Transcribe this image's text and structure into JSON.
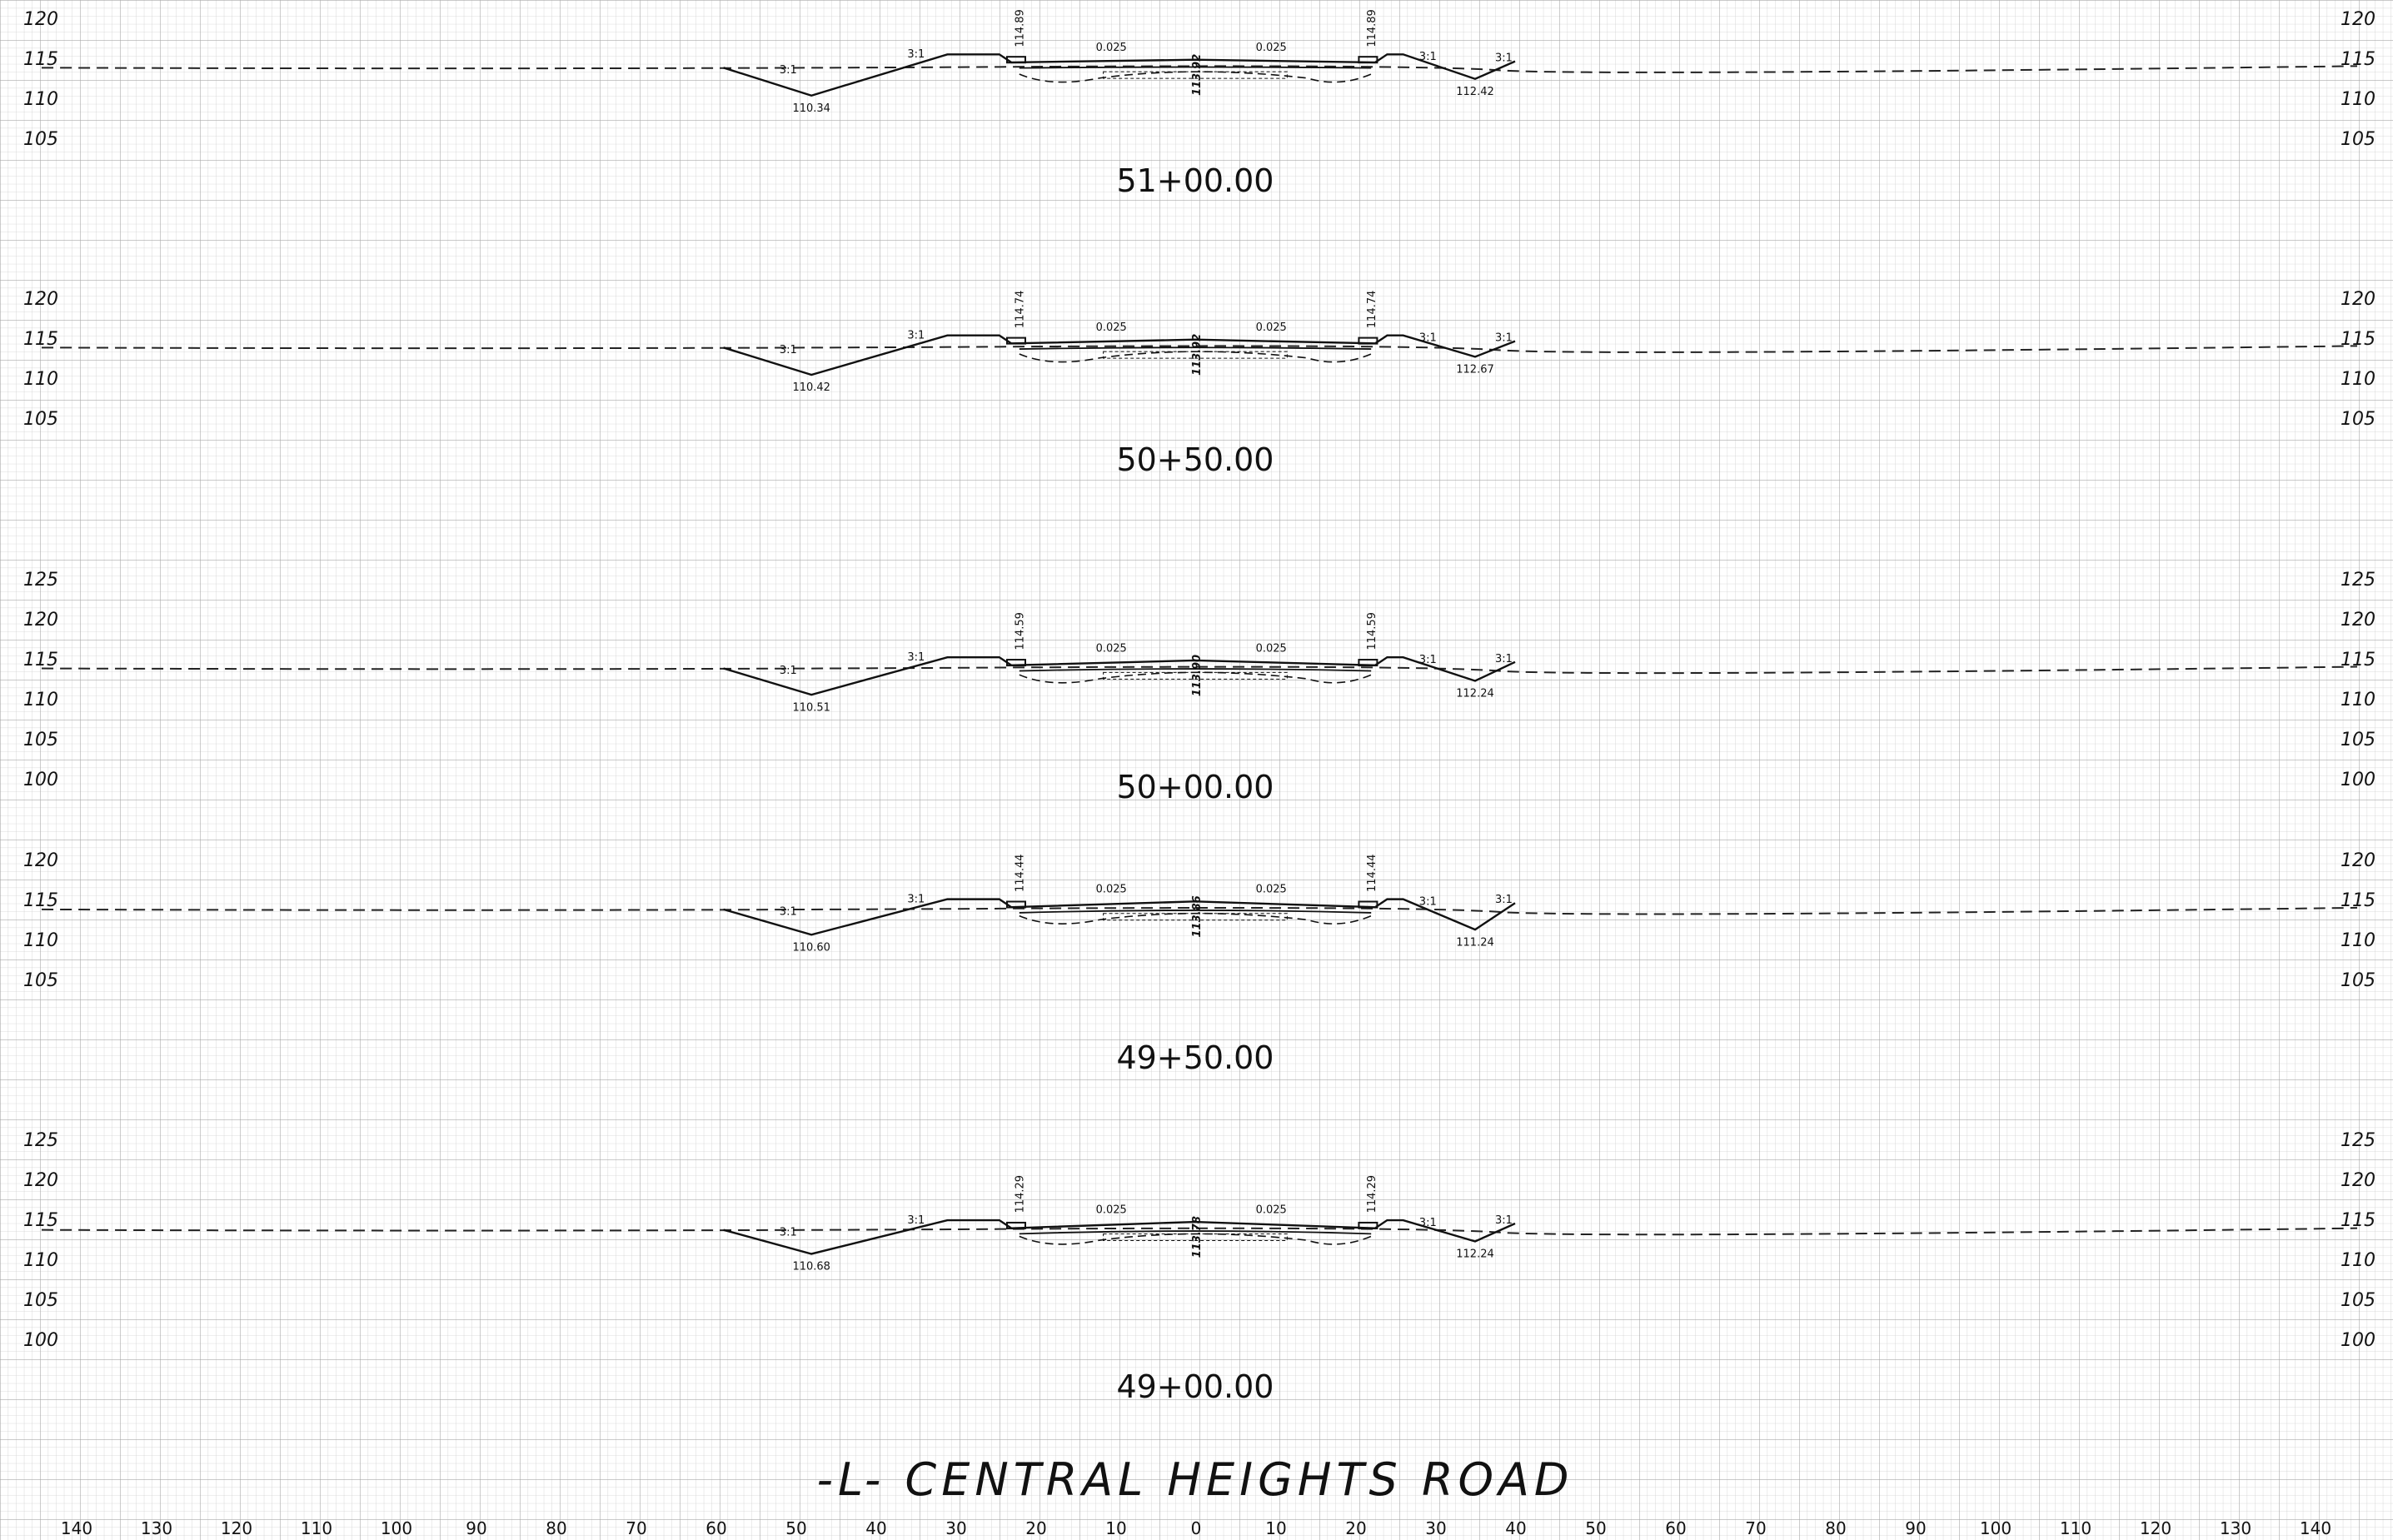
{
  "title": "-L- CENTRAL HEIGHTS ROAD",
  "x_axis_labels": [
    "140",
    "130",
    "120",
    "110",
    "100",
    "90",
    "80",
    "70",
    "60",
    "50",
    "40",
    "30",
    "20",
    "10",
    "0",
    "10",
    "20",
    "30",
    "40",
    "50",
    "60",
    "70",
    "80",
    "90",
    "100",
    "110",
    "120",
    "130",
    "140"
  ],
  "sections": [
    {
      "station": "51+00.00",
      "elevation_labels": [
        "120",
        "115",
        "110",
        "105"
      ],
      "top_elev": 120,
      "shoulder_left": "114.89",
      "shoulder_right": "114.89",
      "ditch_left": "110.34",
      "ditch_right": "112.42",
      "centerline": "113.92",
      "slope_left_fill": "3:1",
      "slope_left_cut": "3:1",
      "slope_right_fill": "3:1",
      "slope_right_cut": "3:1",
      "cross_slope_left": "0.025",
      "cross_slope_right": "0.025"
    },
    {
      "station": "50+50.00",
      "elevation_labels": [
        "120",
        "115",
        "110",
        "105"
      ],
      "top_elev": 120,
      "shoulder_left": "114.74",
      "shoulder_right": "114.74",
      "ditch_left": "110.42",
      "ditch_right": "112.67",
      "centerline": "113.92",
      "slope_left_fill": "3:1",
      "slope_left_cut": "3:1",
      "slope_right_fill": "3:1",
      "slope_right_cut": "3:1",
      "cross_slope_left": "0.025",
      "cross_slope_right": "0.025"
    },
    {
      "station": "50+00.00",
      "elevation_labels": [
        "125",
        "120",
        "115",
        "110",
        "105",
        "100"
      ],
      "top_elev": 125,
      "shoulder_left": "114.59",
      "shoulder_right": "114.59",
      "ditch_left": "110.51",
      "ditch_right": "112.24",
      "centerline": "113.90",
      "slope_left_fill": "3:1",
      "slope_left_cut": "3:1",
      "slope_right_fill": "3:1",
      "slope_right_cut": "3:1",
      "cross_slope_left": "0.025",
      "cross_slope_right": "0.025"
    },
    {
      "station": "49+50.00",
      "elevation_labels": [
        "120",
        "115",
        "110",
        "105"
      ],
      "top_elev": 120,
      "shoulder_left": "114.44",
      "shoulder_right": "114.44",
      "ditch_left": "110.60",
      "ditch_right": "111.24",
      "centerline": "113.86",
      "slope_left_fill": "3:1",
      "slope_left_cut": "3:1",
      "slope_right_fill": "3:1",
      "slope_right_cut": "3:1",
      "cross_slope_left": "0.025",
      "cross_slope_right": "0.025"
    },
    {
      "station": "49+00.00",
      "elevation_labels": [
        "125",
        "120",
        "115",
        "110",
        "105",
        "100"
      ],
      "top_elev": 125,
      "shoulder_left": "114.29",
      "shoulder_right": "114.29",
      "ditch_left": "110.68",
      "ditch_right": "112.24",
      "centerline": "113.78",
      "slope_left_fill": "3:1",
      "slope_left_cut": "3:1",
      "slope_right_fill": "3:1",
      "slope_right_cut": "3:1",
      "cross_slope_left": "0.025",
      "cross_slope_right": "0.025"
    }
  ]
}
